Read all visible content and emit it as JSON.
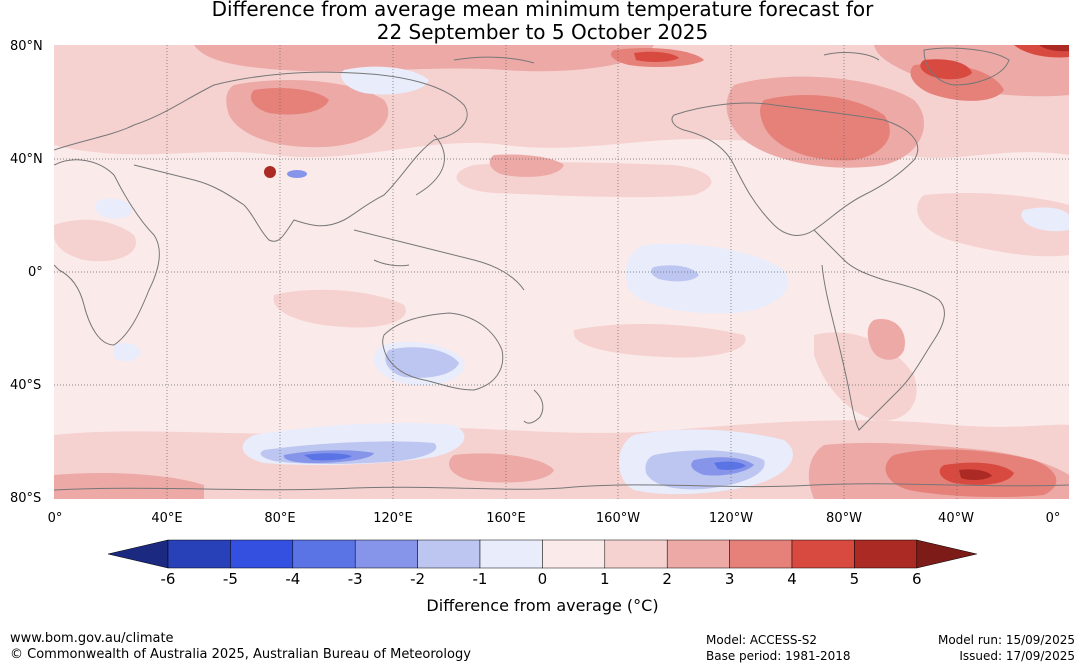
{
  "title": {
    "line1": "Difference from average mean minimum temperature forecast for",
    "line2": "22 September to 5 October 2025"
  },
  "map": {
    "lat_labels": [
      "80°N",
      "40°N",
      "0°",
      "40°S",
      "80°S"
    ],
    "lon_labels": [
      "0°",
      "40°E",
      "80°E",
      "120°E",
      "160°E",
      "160°W",
      "120°W",
      "80°W",
      "40°W",
      "0°"
    ],
    "grid": "dotted",
    "coastline_color": "#777777"
  },
  "colorbar": {
    "title": "Difference from average (°C)",
    "tick_labels": [
      "-6",
      "-5",
      "-4",
      "-3",
      "-2",
      "-1",
      "0",
      "1",
      "2",
      "3",
      "4",
      "5",
      "6"
    ],
    "colors": [
      "#1b2a80",
      "#2840b8",
      "#3450e0",
      "#5a74e6",
      "#8694ea",
      "#bcc6f0",
      "#e8ecfb",
      "#fbeaea",
      "#f5d2d0",
      "#eca9a6",
      "#e58179",
      "#d84a40",
      "#ab2b24",
      "#7c1b18"
    ]
  },
  "footer": {
    "website": "www.bom.gov.au/climate",
    "copyright": "© Commonwealth of Australia 2025, Australian Bureau of Meteorology",
    "model": "Model: ACCESS-S2",
    "base_period": "Base period: 1981-2018",
    "model_run": "Model run: 15/09/2025",
    "issued": "Issued: 17/09/2025"
  }
}
